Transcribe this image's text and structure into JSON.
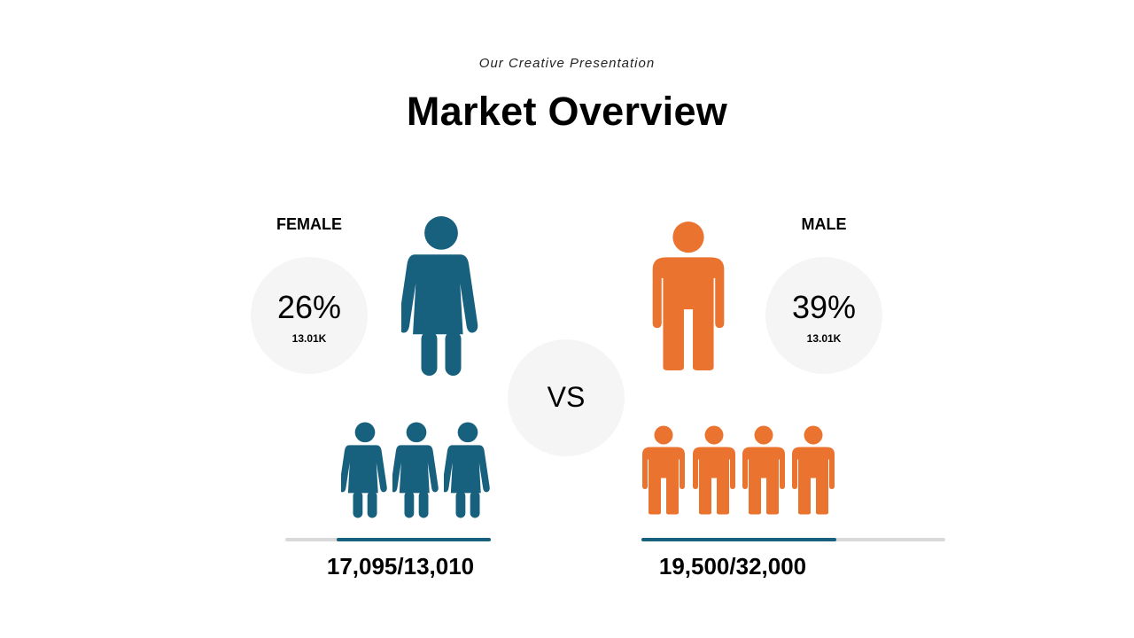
{
  "header": {
    "subtitle": "Our Creative Presentation",
    "title": "Market Overview"
  },
  "female": {
    "label": "FEMALE",
    "percent": "26%",
    "sub_value": "13.01K",
    "count": "17,095/13,010",
    "progress_fraction": 0.75,
    "icon_count": 3,
    "color": "#17607E"
  },
  "male": {
    "label": "MALE",
    "percent": "39%",
    "sub_value": "13.01K",
    "count": "19,500/32,000",
    "progress_fraction": 0.64,
    "icon_count": 4,
    "color": "#EB7330"
  },
  "vs_label": "VS",
  "icons": {
    "female": "female-figure-icon",
    "male": "male-figure-icon"
  }
}
